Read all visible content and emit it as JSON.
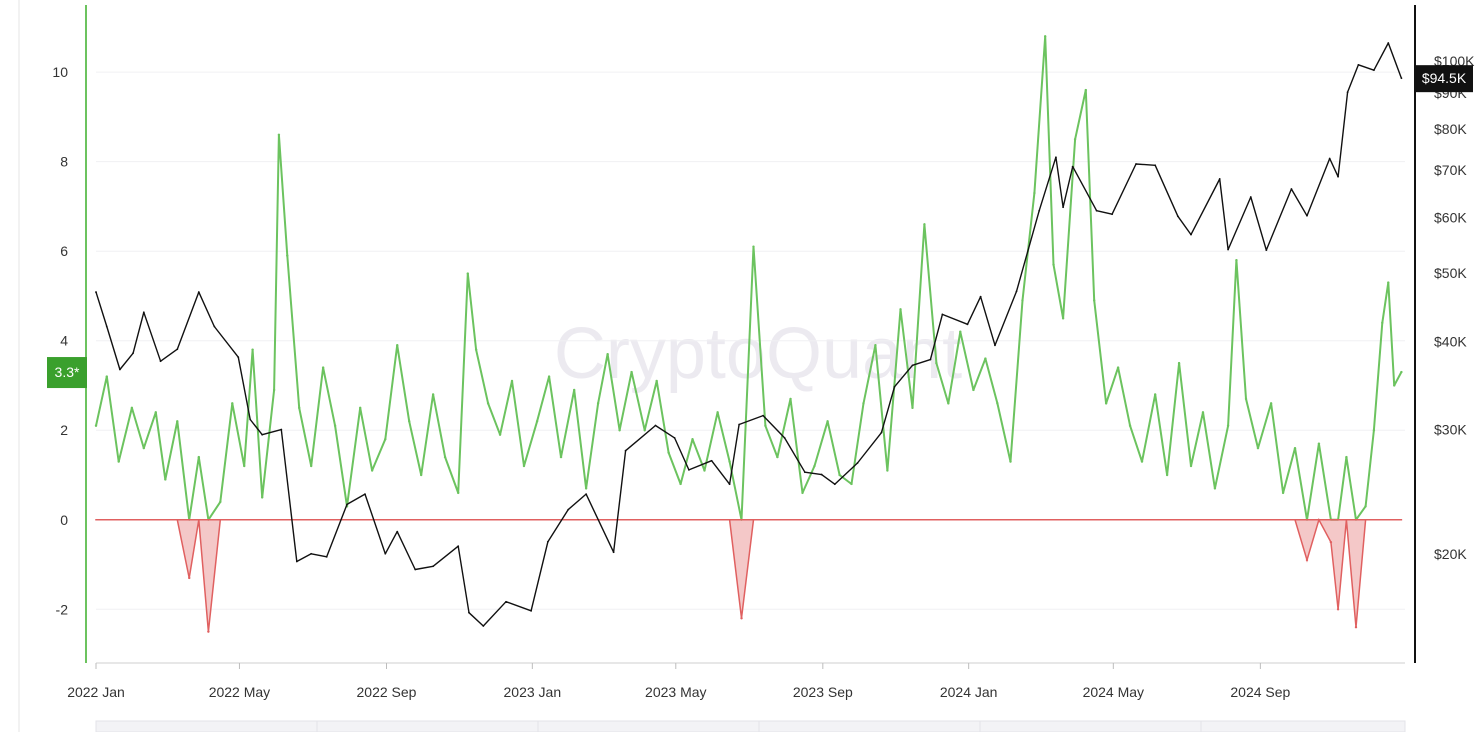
{
  "chart_data": {
    "type": "line",
    "title": "",
    "watermark": "CryptoQuant",
    "x_range": [
      "2022-01-01",
      "2024-12-31"
    ],
    "x_ticks": [
      "2022 Jan",
      "2022 May",
      "2022 Sep",
      "2023 Jan",
      "2023 May",
      "2023 Sep",
      "2024 Jan",
      "2024 May",
      "2024 Sep"
    ],
    "left_axis": {
      "ticks": [
        "10",
        "8",
        "6",
        "4",
        "2",
        "0",
        "-2"
      ],
      "range": [
        -3.2,
        11.5
      ]
    },
    "right_axis": {
      "scale": "log",
      "ticks": [
        "$100K",
        "$90K",
        "$80K",
        "$70K",
        "$60K",
        "$50K",
        "$40K",
        "$30K",
        "$20K"
      ],
      "range": [
        14000,
        120000
      ]
    },
    "current_indicator": {
      "label": "3.3*",
      "value": 3.3,
      "color": "#3aa02d"
    },
    "current_price": {
      "label": "$94.5K",
      "value": 94500
    },
    "series": [
      {
        "role": "indicator",
        "color_positive": "#6cc35f",
        "color_negative": "#e06060",
        "points": [
          [
            "2022-01-01",
            2.1
          ],
          [
            "2022-01-10",
            3.2
          ],
          [
            "2022-01-20",
            1.3
          ],
          [
            "2022-01-31",
            2.5
          ],
          [
            "2022-02-10",
            1.6
          ],
          [
            "2022-02-20",
            2.4
          ],
          [
            "2022-02-28",
            0.9
          ],
          [
            "2022-03-10",
            2.2
          ],
          [
            "2022-03-20",
            -1.3
          ],
          [
            "2022-03-28",
            1.4
          ],
          [
            "2022-04-05",
            -2.5
          ],
          [
            "2022-04-15",
            0.4
          ],
          [
            "2022-04-25",
            2.6
          ],
          [
            "2022-05-05",
            1.2
          ],
          [
            "2022-05-12",
            3.8
          ],
          [
            "2022-05-20",
            0.5
          ],
          [
            "2022-05-30",
            2.9
          ],
          [
            "2022-06-03",
            8.6
          ],
          [
            "2022-06-10",
            5.9
          ],
          [
            "2022-06-20",
            2.5
          ],
          [
            "2022-06-30",
            1.2
          ],
          [
            "2022-07-10",
            3.4
          ],
          [
            "2022-07-20",
            2.1
          ],
          [
            "2022-07-30",
            0.3
          ],
          [
            "2022-08-10",
            2.5
          ],
          [
            "2022-08-20",
            1.1
          ],
          [
            "2022-08-31",
            1.8
          ],
          [
            "2022-09-10",
            3.9
          ],
          [
            "2022-09-20",
            2.2
          ],
          [
            "2022-09-30",
            1.0
          ],
          [
            "2022-10-10",
            2.8
          ],
          [
            "2022-10-20",
            1.4
          ],
          [
            "2022-10-31",
            0.6
          ],
          [
            "2022-11-08",
            5.5
          ],
          [
            "2022-11-15",
            3.8
          ],
          [
            "2022-11-25",
            2.6
          ],
          [
            "2022-12-05",
            1.9
          ],
          [
            "2022-12-15",
            3.1
          ],
          [
            "2022-12-25",
            1.2
          ],
          [
            "2023-01-05",
            2.2
          ],
          [
            "2023-01-15",
            3.2
          ],
          [
            "2023-01-25",
            1.4
          ],
          [
            "2023-02-05",
            2.9
          ],
          [
            "2023-02-15",
            0.7
          ],
          [
            "2023-02-25",
            2.6
          ],
          [
            "2023-03-05",
            3.7
          ],
          [
            "2023-03-15",
            2.0
          ],
          [
            "2023-03-25",
            3.3
          ],
          [
            "2023-04-05",
            2.0
          ],
          [
            "2023-04-15",
            3.1
          ],
          [
            "2023-04-25",
            1.5
          ],
          [
            "2023-05-05",
            0.8
          ],
          [
            "2023-05-15",
            1.8
          ],
          [
            "2023-05-25",
            1.1
          ],
          [
            "2023-06-05",
            2.4
          ],
          [
            "2023-06-15",
            1.3
          ],
          [
            "2023-06-25",
            -2.2
          ],
          [
            "2023-07-05",
            6.1
          ],
          [
            "2023-07-15",
            2.1
          ],
          [
            "2023-07-25",
            1.4
          ],
          [
            "2023-08-05",
            2.7
          ],
          [
            "2023-08-15",
            0.6
          ],
          [
            "2023-08-25",
            1.2
          ],
          [
            "2023-09-05",
            2.2
          ],
          [
            "2023-09-15",
            1.0
          ],
          [
            "2023-09-25",
            0.8
          ],
          [
            "2023-10-05",
            2.6
          ],
          [
            "2023-10-15",
            3.9
          ],
          [
            "2023-10-25",
            1.1
          ],
          [
            "2023-11-05",
            4.7
          ],
          [
            "2023-11-15",
            2.5
          ],
          [
            "2023-11-25",
            6.6
          ],
          [
            "2023-12-05",
            3.5
          ],
          [
            "2023-12-15",
            2.6
          ],
          [
            "2023-12-25",
            4.2
          ],
          [
            "2024-01-05",
            2.9
          ],
          [
            "2024-01-15",
            3.6
          ],
          [
            "2024-01-25",
            2.6
          ],
          [
            "2024-02-05",
            1.3
          ],
          [
            "2024-02-15",
            4.9
          ],
          [
            "2024-02-25",
            7.3
          ],
          [
            "2024-03-05",
            10.8
          ],
          [
            "2024-03-12",
            5.7
          ],
          [
            "2024-03-20",
            4.5
          ],
          [
            "2024-03-30",
            8.5
          ],
          [
            "2024-04-08",
            9.6
          ],
          [
            "2024-04-15",
            4.9
          ],
          [
            "2024-04-25",
            2.6
          ],
          [
            "2024-05-05",
            3.4
          ],
          [
            "2024-05-15",
            2.1
          ],
          [
            "2024-05-25",
            1.3
          ],
          [
            "2024-06-05",
            2.8
          ],
          [
            "2024-06-15",
            1.0
          ],
          [
            "2024-06-25",
            3.5
          ],
          [
            "2024-07-05",
            1.2
          ],
          [
            "2024-07-15",
            2.4
          ],
          [
            "2024-07-25",
            0.7
          ],
          [
            "2024-08-05",
            2.1
          ],
          [
            "2024-08-12",
            5.8
          ],
          [
            "2024-08-20",
            2.7
          ],
          [
            "2024-08-30",
            1.6
          ],
          [
            "2024-09-10",
            2.6
          ],
          [
            "2024-09-20",
            0.6
          ],
          [
            "2024-09-30",
            1.6
          ],
          [
            "2024-10-10",
            -0.9
          ],
          [
            "2024-10-20",
            1.7
          ],
          [
            "2024-10-30",
            -0.5
          ],
          [
            "2024-11-05",
            -2.0
          ],
          [
            "2024-11-12",
            1.4
          ],
          [
            "2024-11-20",
            -2.4
          ],
          [
            "2024-11-28",
            0.3
          ],
          [
            "2024-12-05",
            2.0
          ],
          [
            "2024-12-12",
            4.4
          ],
          [
            "2024-12-17",
            5.3
          ],
          [
            "2024-12-22",
            3.0
          ],
          [
            "2024-12-28",
            3.3
          ]
        ]
      },
      {
        "role": "price",
        "color": "#111111",
        "points": [
          [
            "2022-01-01",
            47000
          ],
          [
            "2022-01-10",
            42000
          ],
          [
            "2022-01-21",
            36500
          ],
          [
            "2022-02-01",
            38500
          ],
          [
            "2022-02-10",
            44000
          ],
          [
            "2022-02-24",
            37500
          ],
          [
            "2022-03-10",
            39000
          ],
          [
            "2022-03-28",
            47000
          ],
          [
            "2022-04-10",
            42000
          ],
          [
            "2022-04-30",
            38000
          ],
          [
            "2022-05-10",
            31000
          ],
          [
            "2022-05-20",
            29500
          ],
          [
            "2022-06-05",
            30000
          ],
          [
            "2022-06-18",
            19500
          ],
          [
            "2022-06-30",
            20000
          ],
          [
            "2022-07-13",
            19800
          ],
          [
            "2022-07-30",
            23500
          ],
          [
            "2022-08-14",
            24300
          ],
          [
            "2022-08-31",
            20000
          ],
          [
            "2022-09-10",
            21500
          ],
          [
            "2022-09-25",
            19000
          ],
          [
            "2022-10-10",
            19200
          ],
          [
            "2022-10-31",
            20500
          ],
          [
            "2022-11-09",
            16500
          ],
          [
            "2022-11-21",
            15800
          ],
          [
            "2022-12-10",
            17100
          ],
          [
            "2022-12-31",
            16600
          ],
          [
            "2023-01-14",
            20800
          ],
          [
            "2023-01-31",
            23100
          ],
          [
            "2023-02-15",
            24300
          ],
          [
            "2023-03-10",
            20100
          ],
          [
            "2023-03-20",
            28000
          ],
          [
            "2023-04-14",
            30400
          ],
          [
            "2023-04-30",
            29200
          ],
          [
            "2023-05-12",
            26300
          ],
          [
            "2023-05-31",
            27100
          ],
          [
            "2023-06-15",
            25100
          ],
          [
            "2023-06-23",
            30500
          ],
          [
            "2023-07-13",
            31400
          ],
          [
            "2023-07-31",
            29200
          ],
          [
            "2023-08-17",
            26100
          ],
          [
            "2023-08-31",
            25900
          ],
          [
            "2023-09-11",
            25100
          ],
          [
            "2023-09-30",
            26900
          ],
          [
            "2023-10-20",
            29700
          ],
          [
            "2023-10-31",
            34500
          ],
          [
            "2023-11-15",
            37000
          ],
          [
            "2023-11-30",
            37700
          ],
          [
            "2023-12-10",
            43700
          ],
          [
            "2023-12-31",
            42300
          ],
          [
            "2024-01-11",
            46300
          ],
          [
            "2024-01-23",
            39500
          ],
          [
            "2024-02-10",
            47100
          ],
          [
            "2024-02-29",
            61300
          ],
          [
            "2024-03-14",
            73000
          ],
          [
            "2024-03-20",
            62000
          ],
          [
            "2024-03-28",
            70800
          ],
          [
            "2024-04-17",
            61300
          ],
          [
            "2024-04-30",
            60600
          ],
          [
            "2024-05-20",
            71400
          ],
          [
            "2024-06-05",
            71100
          ],
          [
            "2024-06-24",
            60200
          ],
          [
            "2024-07-05",
            56700
          ],
          [
            "2024-07-29",
            68000
          ],
          [
            "2024-08-05",
            54000
          ],
          [
            "2024-08-24",
            64100
          ],
          [
            "2024-09-06",
            53900
          ],
          [
            "2024-09-27",
            65800
          ],
          [
            "2024-10-10",
            60300
          ],
          [
            "2024-10-29",
            72700
          ],
          [
            "2024-11-05",
            68500
          ],
          [
            "2024-11-13",
            90300
          ],
          [
            "2024-11-22",
            98700
          ],
          [
            "2024-12-05",
            97000
          ],
          [
            "2024-12-17",
            106000
          ],
          [
            "2024-12-28",
            94500
          ]
        ]
      }
    ]
  }
}
